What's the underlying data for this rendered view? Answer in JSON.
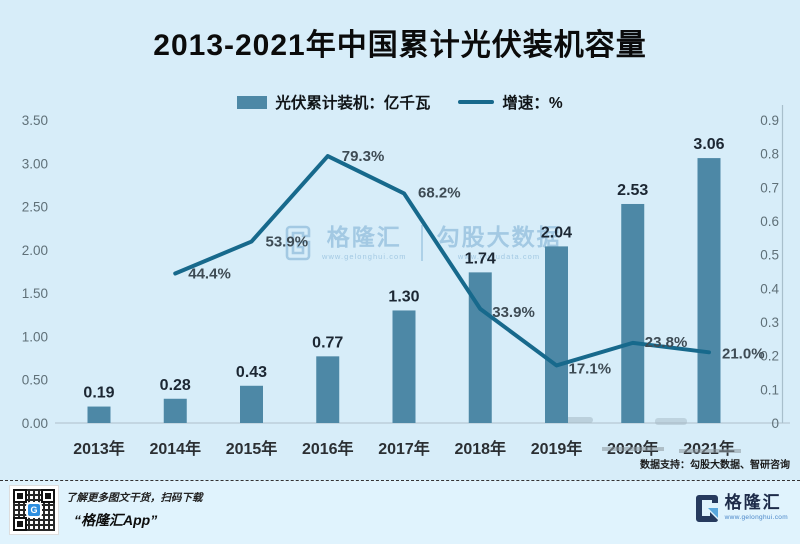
{
  "title": "2013-2021年中国累计光伏装机容量",
  "legend": {
    "bars": "光伏累计装机：亿千瓦",
    "line": "增速：%"
  },
  "chart_data": {
    "type": "bar",
    "categories": [
      "2013年",
      "2014年",
      "2015年",
      "2016年",
      "2017年",
      "2018年",
      "2019年",
      "2020年",
      "2021年"
    ],
    "series": [
      {
        "name": "光伏累计装机：亿千瓦",
        "type": "bar",
        "axis": "left",
        "values": [
          0.19,
          0.28,
          0.43,
          0.77,
          1.3,
          1.74,
          2.04,
          2.53,
          3.06
        ],
        "labels": [
          "0.19",
          "0.28",
          "0.43",
          "0.77",
          "1.30",
          "1.74",
          "2.04",
          "2.53",
          "3.06"
        ]
      },
      {
        "name": "增速：%",
        "type": "line",
        "axis": "right",
        "values": [
          null,
          44.4,
          53.9,
          79.3,
          68.2,
          33.9,
          17.1,
          23.8,
          21.0
        ],
        "labels": [
          null,
          "44.4%",
          "53.9%",
          "79.3%",
          "68.2%",
          "33.9%",
          "17.1%",
          "23.8%",
          "21.0%"
        ]
      }
    ],
    "left_axis": {
      "ticks": [
        "0.00",
        "0.50",
        "1.00",
        "1.50",
        "2.00",
        "2.50",
        "3.00",
        "3.50"
      ],
      "ylim": [
        0,
        3.5
      ]
    },
    "right_axis": {
      "ticks": [
        "0",
        "0.1",
        "0.2",
        "0.3",
        "0.4",
        "0.5",
        "0.6",
        "0.7",
        "0.8",
        "0.9"
      ],
      "ylim": [
        0,
        0.9
      ]
    },
    "grid": false,
    "legend_position": "top"
  },
  "watermark": {
    "brand": "格隆汇",
    "brand_url": "www.gelonghui.com",
    "partner": "勾股大数据",
    "partner_url": "www.gugudata.com"
  },
  "source_note": "数据支持：勾股大数据、智研咨询",
  "footer": {
    "scan_hint": "了解更多图文干货，扫码下载",
    "app_name": "“格隆汇App”",
    "qr_logo_letter": "G",
    "logo_text": "格隆汇",
    "logo_url": "www.gelonghui.com"
  },
  "colors": {
    "background": "#d7edf9",
    "footer_background": "#e0f3fd",
    "bar": "#4d88a6",
    "line": "#17698c",
    "watermark": "#a3c9e3",
    "logo_navy": "#1d2b49",
    "link_blue": "#4a86c8"
  }
}
